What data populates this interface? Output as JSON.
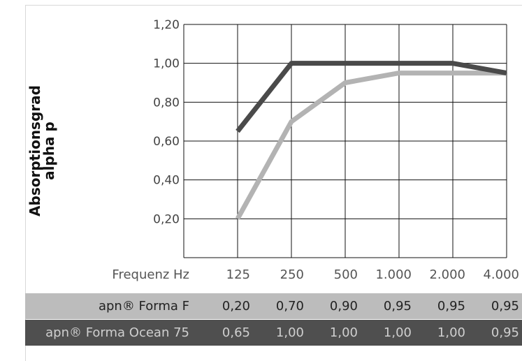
{
  "chart_data": {
    "type": "line",
    "ylabel": [
      "Absorptionsgrad",
      "alpha p"
    ],
    "xlabel": "Frequenz Hz",
    "categories": [
      "125",
      "250",
      "500",
      "1.000",
      "2.000",
      "4.000"
    ],
    "ylim": [
      0,
      1.2
    ],
    "y_ticks": [
      "0,20",
      "0,40",
      "0,60",
      "0,80",
      "1,00",
      "1,20"
    ],
    "y_tick_values": [
      0.2,
      0.4,
      0.6,
      0.8,
      1.0,
      1.2
    ],
    "grid": true,
    "series": [
      {
        "name": "apn® Forma F",
        "values": [
          0.2,
          0.7,
          0.9,
          0.95,
          0.95,
          0.95
        ],
        "labels": [
          "0,20",
          "0,70",
          "0,90",
          "0,95",
          "0,95",
          "0,95"
        ],
        "color": "#b3b3b3"
      },
      {
        "name": "apn® Forma Ocean 75",
        "values": [
          0.65,
          1.0,
          1.0,
          1.0,
          1.0,
          0.95
        ],
        "labels": [
          "0,65",
          "1,00",
          "1,00",
          "1,00",
          "1,00",
          "0,95"
        ],
        "color": "#4a4a4a"
      }
    ]
  }
}
